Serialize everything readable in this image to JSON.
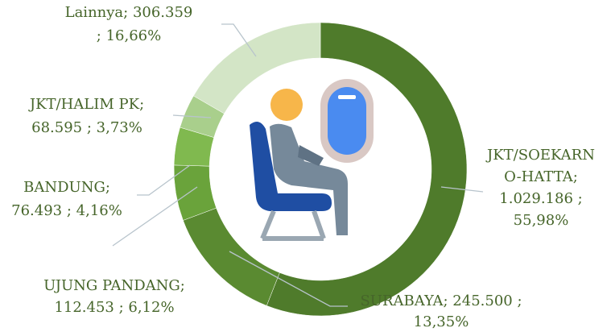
{
  "chart_data": {
    "type": "donut",
    "values": [
      1029186,
      245500,
      112453,
      76493,
      68595,
      306359
    ],
    "percents": [
      55.98,
      13.35,
      6.12,
      4.16,
      3.73,
      16.66
    ],
    "value_labels": [
      [
        "JKT/SOEKARN",
        "O-HATTA;",
        "1.029.186 ;",
        "55,98%"
      ],
      [
        "SURABAYA;  245.500 ;",
        "13,35%"
      ],
      [
        "UJUNG PANDANG;",
        "112.453 ; 6,12%"
      ],
      [
        "BANDUNG;",
        "76.493 ; 4,16%"
      ],
      [
        "JKT/HALIM PK;",
        "68.595 ; 3,73%"
      ],
      [
        "Lainnya;  306.359",
        "; 16,66%"
      ]
    ],
    "colors": [
      "#4f7b2b",
      "#5a8a31",
      "#6aa33b",
      "#80b94f",
      "#a9cf8c",
      "#d3e5c6"
    ]
  }
}
